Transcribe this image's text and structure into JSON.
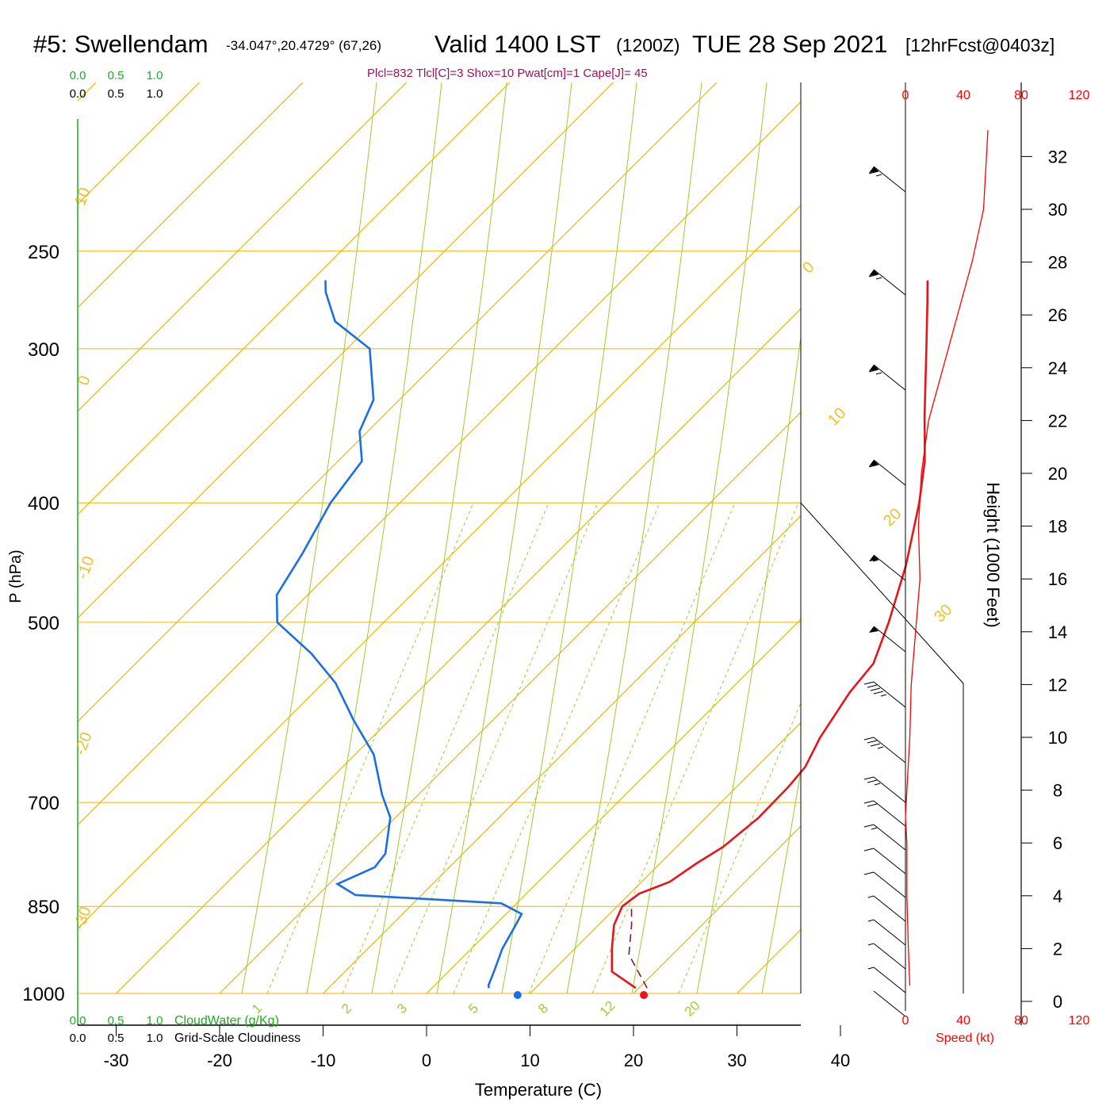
{
  "header": {
    "station": "#5: Swellendam",
    "coords": "-34.047°,20.4729° (67,26)",
    "valid": "Valid 1400 LST",
    "utc": "(1200Z)",
    "date": "TUE 28 Sep 2021",
    "forecast": "[12hrFcst@0403z]"
  },
  "params_line": "Plcl=832 Tlcl[C]=3 Shox=10 Pwat[cm]=1 Cape[J]= 45",
  "colors": {
    "temperature": "#e8141a",
    "dewpoint": "#1a6ee6",
    "parcel": "#7a1a4a",
    "isotherm": "#f0b400",
    "mixing_ratio": "#9acd32",
    "cloudwater": "#22aa22",
    "wind_speed": "#ff0000",
    "params": "#a0105a"
  },
  "chart_data": {
    "type": "line",
    "title": "#5: Swellendam",
    "xlabel": "Temperature (C)",
    "ylabel": "P (hPa)",
    "y2label": "Height (1000 Feet)",
    "xlim": [
      -34,
      36
    ],
    "ylim": [
      1000,
      250
    ],
    "x_ticks": [
      "-30",
      "-20",
      "-10",
      "0",
      "10",
      "20",
      "30",
      "40"
    ],
    "pressure_levels": [
      "250",
      "300",
      "400",
      "500",
      "700",
      "850",
      "1000"
    ],
    "height_ticks": [
      "0",
      "2",
      "4",
      "6",
      "8",
      "10",
      "12",
      "14",
      "16",
      "18",
      "20",
      "22",
      "24",
      "26",
      "28",
      "30",
      "32"
    ],
    "cloud_scale_labels": [
      "0.0",
      "0.5",
      "1.0"
    ],
    "cloudwater_label": "CloudWater (g/Kg)",
    "cloudiness_label": "Grid-Scale Cloudiness",
    "speed_ticks": [
      "0",
      "40",
      "80",
      "120"
    ],
    "speed_label": "Speed (kt)",
    "isotherm_labels": [
      "10",
      "0",
      "-10",
      "-20",
      "-30",
      "0",
      "10",
      "20",
      "30"
    ],
    "mixing_ratio_labels": [
      "1",
      "2",
      "3",
      "5",
      "8",
      "12",
      "20"
    ],
    "series": [
      {
        "key": "temperature",
        "points": [
          [
            990,
            19.7
          ],
          [
            960,
            15.8
          ],
          [
            920,
            13.6
          ],
          [
            880,
            11.5
          ],
          [
            850,
            10.5
          ],
          [
            830,
            10.9
          ],
          [
            812,
            12.7
          ],
          [
            785,
            13.5
          ],
          [
            760,
            14.5
          ],
          [
            720,
            15.1
          ],
          [
            680,
            15.0
          ],
          [
            655,
            14.7
          ],
          [
            620,
            13.3
          ],
          [
            570,
            11.8
          ],
          [
            540,
            11.3
          ],
          [
            500,
            8.8
          ],
          [
            450,
            5.0
          ],
          [
            400,
            0.2
          ],
          [
            370,
            -3.3
          ],
          [
            340,
            -7.7
          ],
          [
            300,
            -14.0
          ],
          [
            275,
            -18.4
          ],
          [
            264,
            -20.5
          ]
        ]
      },
      {
        "key": "dewpoint",
        "points": [
          [
            990,
            5.5
          ],
          [
            985,
            5.2
          ],
          [
            960,
            4.4
          ],
          [
            920,
            3.0
          ],
          [
            880,
            2.0
          ],
          [
            862,
            1.5
          ],
          [
            845,
            -1.5
          ],
          [
            832,
            -16.4
          ],
          [
            815,
            -19.2
          ],
          [
            800,
            -18.0
          ],
          [
            790,
            -17.2
          ],
          [
            770,
            -17.5
          ],
          [
            720,
            -20.5
          ],
          [
            690,
            -23.5
          ],
          [
            640,
            -28.2
          ],
          [
            600,
            -33.5
          ],
          [
            560,
            -38.8
          ],
          [
            530,
            -44.0
          ],
          [
            500,
            -50.3
          ],
          [
            475,
            -53.0
          ],
          [
            440,
            -54.5
          ],
          [
            400,
            -56.7
          ],
          [
            370,
            -57.7
          ],
          [
            350,
            -60.8
          ],
          [
            330,
            -62.5
          ],
          [
            300,
            -67.8
          ],
          [
            285,
            -73.8
          ],
          [
            270,
            -77.5
          ],
          [
            264,
            -78.7
          ]
        ]
      },
      {
        "key": "parcel",
        "dashed": true,
        "points": [
          [
            990,
            20.8
          ],
          [
            930,
            15.8
          ],
          [
            880,
            13.2
          ],
          [
            850,
            11.4
          ]
        ]
      }
    ],
    "surface_markers": [
      {
        "key": "temperature",
        "pressure": 1000,
        "value": 21.0
      },
      {
        "key": "dewpoint",
        "pressure": 1000,
        "value": 8.8
      }
    ],
    "wind_speed_profile": {
      "height_kft": [
        0.6,
        2,
        4,
        6,
        7,
        8,
        10,
        12,
        14,
        16,
        18,
        20,
        22,
        24,
        26,
        28,
        30,
        32,
        33
      ],
      "speed_kt": [
        3,
        2,
        1,
        1,
        0,
        1,
        3,
        4,
        7,
        10,
        9,
        11,
        16,
        26,
        36,
        46,
        54,
        56,
        57
      ]
    },
    "wind_barbs": [
      {
        "level": 1,
        "speed": 2
      },
      {
        "level": 2,
        "speed": 5
      },
      {
        "level": 3,
        "speed": 5
      },
      {
        "level": 4,
        "speed": 5
      },
      {
        "level": 5,
        "speed": 5
      },
      {
        "level": 6,
        "speed": 10
      },
      {
        "level": 7,
        "speed": 10
      },
      {
        "level": 8,
        "speed": 15
      },
      {
        "level": 9,
        "speed": 20
      },
      {
        "level": 10,
        "speed": 25
      },
      {
        "level": 11,
        "speed": 35
      },
      {
        "level": 12,
        "speed": 45
      },
      {
        "level": 13,
        "speed": 50
      },
      {
        "level": 14,
        "speed": 55
      },
      {
        "level": 15,
        "speed": 60
      },
      {
        "level": 16,
        "speed": 65
      },
      {
        "level": 17,
        "speed": 65
      },
      {
        "level": 18,
        "speed": 65
      }
    ]
  }
}
